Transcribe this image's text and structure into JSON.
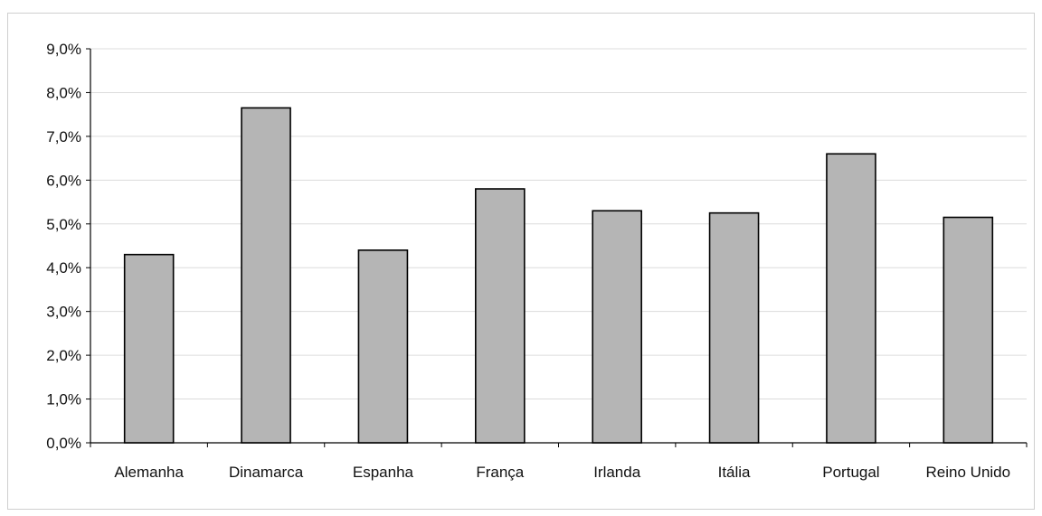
{
  "chart_data": {
    "type": "bar",
    "title": "",
    "xlabel": "",
    "ylabel": "",
    "categories": [
      "Alemanha",
      "Dinamarca",
      "Espanha",
      "França",
      "Irlanda",
      "Itália",
      "Portugal",
      "Reino Unido"
    ],
    "values": [
      4.3,
      7.65,
      4.4,
      5.8,
      5.3,
      5.25,
      6.6,
      5.15
    ],
    "ylim": [
      0,
      9
    ],
    "yticks": [
      "0,0%",
      "1,0%",
      "2,0%",
      "3,0%",
      "4,0%",
      "5,0%",
      "6,0%",
      "7,0%",
      "8,0%",
      "9,0%"
    ],
    "grid": true,
    "legend": "none",
    "bar_color": "#b5b5b5",
    "bar_stroke": "#000000"
  }
}
